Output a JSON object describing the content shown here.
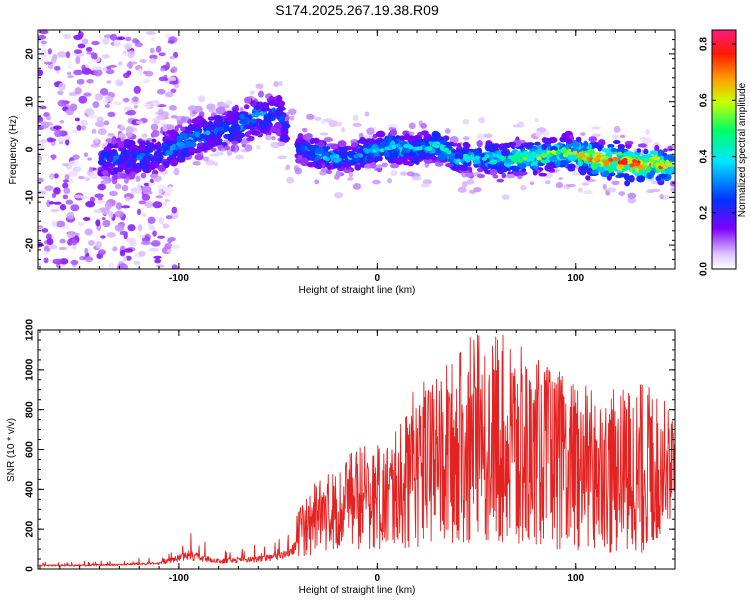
{
  "figure": {
    "title": "S174.2025.267.19.38.R09"
  },
  "colors": {
    "snr_line": "#e52222",
    "axis": "#000000",
    "background": "#ffffff"
  },
  "chart_data": [
    {
      "type": "heatmap",
      "title": "S174.2025.267.19.38.R09",
      "xlabel": "Height of straight line (km)",
      "ylabel": "Frequency (Hz)",
      "xlim": [
        -171,
        150
      ],
      "ylim": [
        -25,
        25
      ],
      "xticks": [
        -100,
        0,
        100
      ],
      "xtick_labels": [
        "-100",
        "0",
        "100"
      ],
      "yticks": [
        -20,
        -10,
        0,
        10,
        20
      ],
      "ytick_labels": [
        "-20",
        "-10",
        "0",
        "10",
        "20"
      ],
      "colorbar": {
        "label": "Normalized spectral amplitude",
        "range": [
          0.0,
          0.85
        ],
        "ticks": [
          0.0,
          0.2,
          0.4,
          0.6,
          0.8
        ],
        "tick_labels": [
          "0.0",
          "0.2",
          "0.4",
          "0.6",
          "0.8"
        ],
        "colormap": "rainbow (white-violet-blue-cyan-green-yellow-red-magenta)"
      },
      "ridge": [
        {
          "x": -130,
          "freq": -2,
          "amp": 0.3
        },
        {
          "x": -120,
          "freq": -1.5,
          "amp": 0.3
        },
        {
          "x": -110,
          "freq": -1,
          "amp": 0.3
        },
        {
          "x": -100,
          "freq": 1,
          "amp": 0.35
        },
        {
          "x": -90,
          "freq": 3,
          "amp": 0.35
        },
        {
          "x": -80,
          "freq": 4,
          "amp": 0.3
        },
        {
          "x": -70,
          "freq": 5,
          "amp": 0.35
        },
        {
          "x": -60,
          "freq": 7,
          "amp": 0.35
        },
        {
          "x": -50,
          "freq": 8,
          "amp": 0.3
        },
        {
          "x": -44,
          "freq": 1,
          "amp": 0.25
        },
        {
          "x": -30,
          "freq": -1,
          "amp": 0.35
        },
        {
          "x": -20,
          "freq": -2,
          "amp": 0.35
        },
        {
          "x": -10,
          "freq": -1,
          "amp": 0.35
        },
        {
          "x": 0,
          "freq": 0,
          "amp": 0.4
        },
        {
          "x": 10,
          "freq": 0.5,
          "amp": 0.4
        },
        {
          "x": 20,
          "freq": 0,
          "amp": 0.4
        },
        {
          "x": 30,
          "freq": 1,
          "amp": 0.45
        },
        {
          "x": 40,
          "freq": -2,
          "amp": 0.4
        },
        {
          "x": 50,
          "freq": -1.5,
          "amp": 0.4
        },
        {
          "x": 60,
          "freq": -2,
          "amp": 0.45
        },
        {
          "x": 70,
          "freq": -2,
          "amp": 0.5
        },
        {
          "x": 80,
          "freq": -1.5,
          "amp": 0.55
        },
        {
          "x": 90,
          "freq": -1,
          "amp": 0.55
        },
        {
          "x": 100,
          "freq": -1,
          "amp": 0.6
        },
        {
          "x": 110,
          "freq": -2,
          "amp": 0.7
        },
        {
          "x": 120,
          "freq": -2.5,
          "amp": 0.8
        },
        {
          "x": 130,
          "freq": -3,
          "amp": 0.75
        },
        {
          "x": 140,
          "freq": -3,
          "amp": 0.75
        },
        {
          "x": 148,
          "freq": -3.5,
          "amp": 0.6
        }
      ]
    },
    {
      "type": "line",
      "xlabel": "Height of straight line (km)",
      "ylabel": "SNR (10 * v/v)",
      "xlim": [
        -171,
        150
      ],
      "ylim": [
        0,
        1200
      ],
      "xticks": [
        -100,
        0,
        100
      ],
      "xtick_labels": [
        "-100",
        "0",
        "100"
      ],
      "yticks": [
        0,
        200,
        400,
        600,
        800,
        1000,
        1200
      ],
      "ytick_labels": [
        "0",
        "200",
        "400",
        "600",
        "800",
        "1000",
        "1200"
      ],
      "series": [
        {
          "name": "SNR",
          "color": "#e52222",
          "envelope": [
            {
              "x": -171,
              "min": 10,
              "max": 35
            },
            {
              "x": -140,
              "min": 10,
              "max": 40
            },
            {
              "x": -110,
              "min": 15,
              "max": 60
            },
            {
              "x": -95,
              "min": 20,
              "max": 180
            },
            {
              "x": -80,
              "min": 15,
              "max": 90
            },
            {
              "x": -60,
              "min": 20,
              "max": 120
            },
            {
              "x": -45,
              "min": 30,
              "max": 170
            },
            {
              "x": -38,
              "min": 60,
              "max": 350
            },
            {
              "x": -30,
              "min": 80,
              "max": 450
            },
            {
              "x": -20,
              "min": 100,
              "max": 520
            },
            {
              "x": -10,
              "min": 100,
              "max": 620
            },
            {
              "x": 0,
              "min": 100,
              "max": 620
            },
            {
              "x": 10,
              "min": 100,
              "max": 700
            },
            {
              "x": 20,
              "min": 110,
              "max": 940
            },
            {
              "x": 30,
              "min": 130,
              "max": 970
            },
            {
              "x": 45,
              "min": 130,
              "max": 1170
            },
            {
              "x": 60,
              "min": 130,
              "max": 1200
            },
            {
              "x": 75,
              "min": 120,
              "max": 1100
            },
            {
              "x": 90,
              "min": 100,
              "max": 1000
            },
            {
              "x": 105,
              "min": 90,
              "max": 920
            },
            {
              "x": 120,
              "min": 80,
              "max": 900
            },
            {
              "x": 135,
              "min": 80,
              "max": 950
            },
            {
              "x": 150,
              "min": 250,
              "max": 800
            }
          ]
        }
      ]
    }
  ]
}
